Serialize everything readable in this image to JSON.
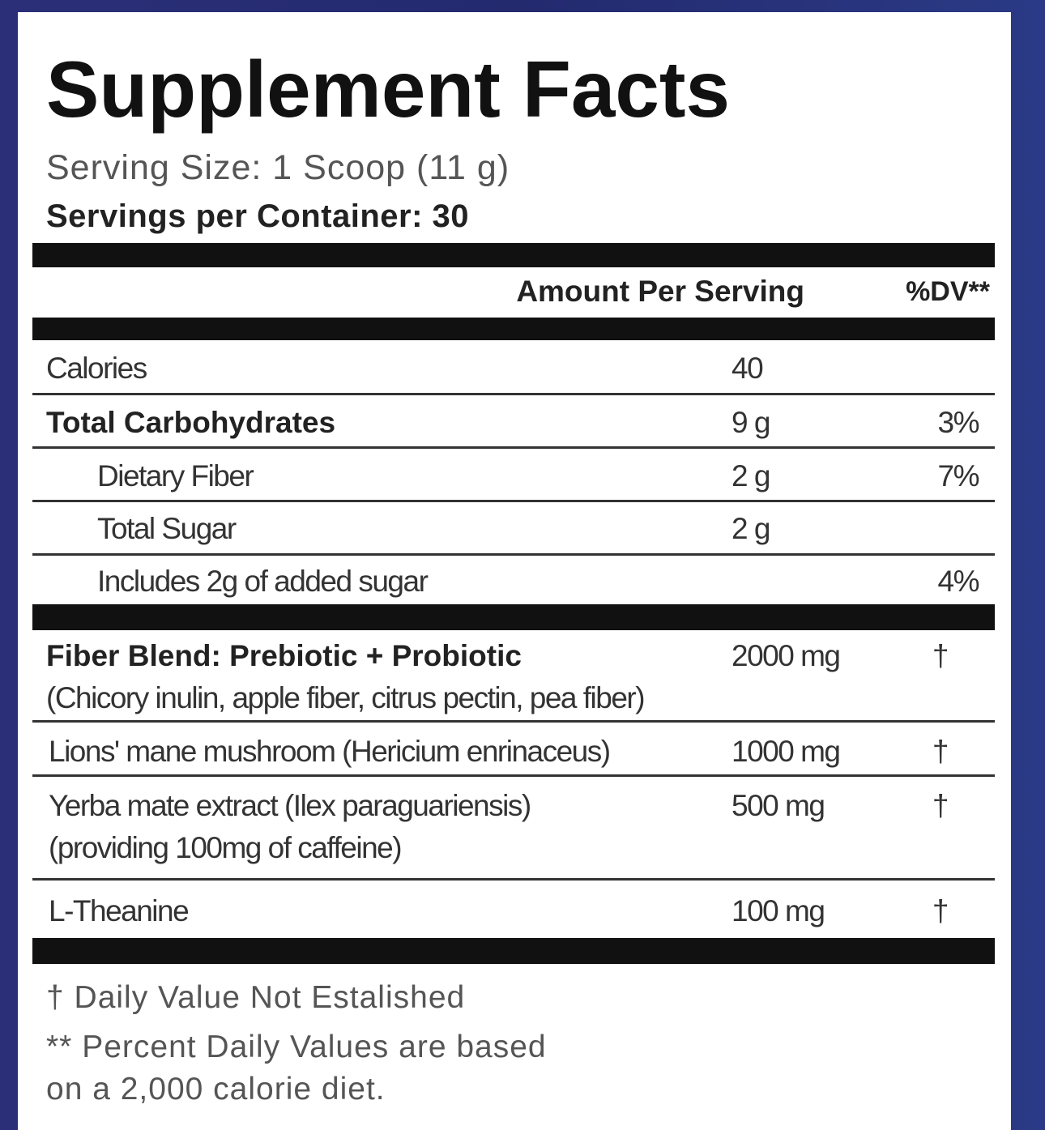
{
  "title": "Supplement Facts",
  "serving_size": "Serving Size: 1 Scoop (11 g)",
  "servings_per_container": "Servings per Container: 30",
  "header": {
    "amount": "Amount Per Serving",
    "dv": "%DV**"
  },
  "rows": [
    {
      "name": "Calories",
      "amount": "40"
    },
    {
      "name": "Total Carbohydrates",
      "amount": "9 g",
      "dv": "3%"
    },
    {
      "name": "Dietary Fiber",
      "amount": "2 g",
      "dv": "7%"
    },
    {
      "name": "Total Sugar",
      "amount": "2 g"
    },
    {
      "name": "Includes 2g of added sugar",
      "dv": "4%"
    },
    {
      "name": "Fiber Blend: Prebiotic + Probiotic",
      "sub": "(Chicory inulin, apple fiber, citrus pectin, pea fiber)",
      "amount": "2000 mg",
      "dv": "†"
    },
    {
      "name": "Lions' mane mushroom (Hericium enrinaceus)",
      "amount": "1000 mg",
      "dv": "†"
    },
    {
      "name": "Yerba mate extract (Ilex paraguariensis)",
      "sub": "(providing 100mg of caffeine)",
      "amount": "500 mg",
      "dv": "†"
    },
    {
      "name": "L-Theanine",
      "amount": "100 mg",
      "dv": "†"
    }
  ],
  "footnotes": [
    "† Daily Value Not Estalished",
    "** Percent Daily Values are based",
    "on a 2,000 calorie diet."
  ]
}
